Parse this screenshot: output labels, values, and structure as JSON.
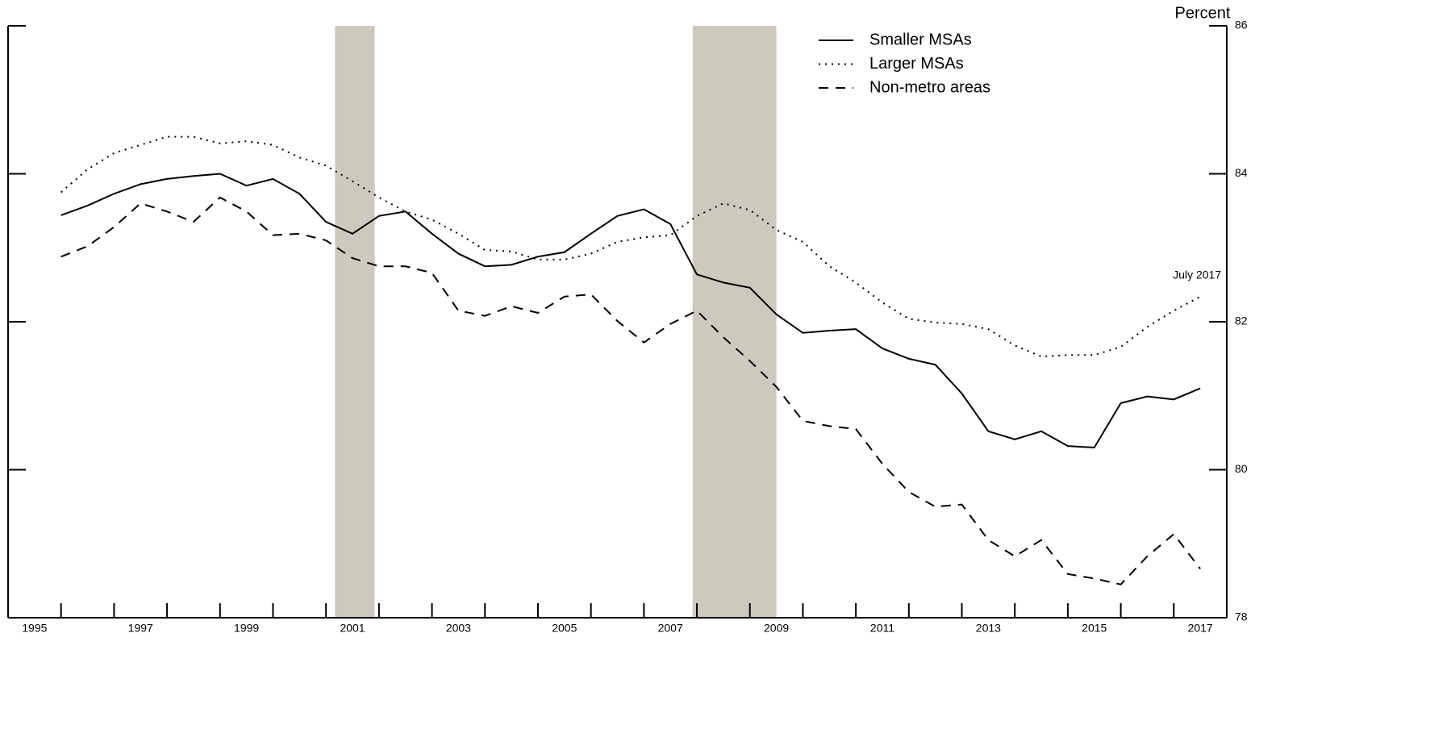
{
  "chart_data": {
    "type": "line",
    "y_axis_label": "Percent",
    "annotation": "July 2017",
    "legend": "top-right",
    "recession_color": "#cdc9bf",
    "recessions": [
      [
        2001.17,
        2001.92
      ],
      [
        2007.92,
        2009.5
      ]
    ],
    "xlim": [
      1995,
      2018
    ],
    "xtick_marks": [
      1996,
      1997,
      1998,
      1999,
      2000,
      2001,
      2002,
      2003,
      2004,
      2005,
      2006,
      2007,
      2008,
      2009,
      2010,
      2011,
      2012,
      2013,
      2014,
      2015,
      2016,
      2017,
      2018
    ],
    "xticks": [
      {
        "value": 1995.5,
        "label": "1995"
      },
      {
        "value": 1997.5,
        "label": "1997"
      },
      {
        "value": 1999.5,
        "label": "1999"
      },
      {
        "value": 2001.5,
        "label": "2001"
      },
      {
        "value": 2003.5,
        "label": "2003"
      },
      {
        "value": 2005.5,
        "label": "2005"
      },
      {
        "value": 2007.5,
        "label": "2007"
      },
      {
        "value": 2009.5,
        "label": "2009"
      },
      {
        "value": 2011.5,
        "label": "2011"
      },
      {
        "value": 2013.5,
        "label": "2013"
      },
      {
        "value": 2015.5,
        "label": "2015"
      },
      {
        "value": 2017.5,
        "label": "2017"
      }
    ],
    "ylim": [
      78,
      86
    ],
    "yticks": [
      78,
      80,
      82,
      84,
      86
    ],
    "x": [
      1996.0,
      1996.5,
      1997.0,
      1997.5,
      1998.0,
      1998.5,
      1999.0,
      1999.5,
      2000.0,
      2000.5,
      2001.0,
      2001.5,
      2002.0,
      2002.5,
      2003.0,
      2003.5,
      2004.0,
      2004.5,
      2005.0,
      2005.5,
      2006.0,
      2006.5,
      2007.0,
      2007.5,
      2008.0,
      2008.5,
      2009.0,
      2009.5,
      2010.0,
      2010.5,
      2011.0,
      2011.5,
      2012.0,
      2012.5,
      2013.0,
      2013.5,
      2014.0,
      2014.5,
      2015.0,
      2015.5,
      2016.0,
      2016.5,
      2017.0,
      2017.5
    ],
    "series": [
      {
        "name": "Smaller MSAs",
        "color": "#000000",
        "style": "solid",
        "values": [
          83.44,
          83.57,
          83.73,
          83.86,
          83.93,
          83.97,
          84.0,
          83.84,
          83.93,
          83.73,
          83.35,
          83.19,
          83.43,
          83.49,
          83.19,
          82.92,
          82.75,
          82.77,
          82.88,
          82.94,
          83.19,
          83.43,
          83.52,
          83.32,
          82.64,
          82.53,
          82.46,
          82.1,
          81.85,
          81.88,
          81.9,
          81.64,
          81.5,
          81.42,
          81.03,
          80.52,
          80.41,
          80.52,
          80.32,
          80.3,
          80.9,
          80.99,
          80.95,
          81.1
        ]
      },
      {
        "name": "Larger MSAs",
        "color": "#000000",
        "style": "dotted",
        "values": [
          83.75,
          84.06,
          84.28,
          84.39,
          84.5,
          84.5,
          84.41,
          84.44,
          84.39,
          84.22,
          84.11,
          83.9,
          83.68,
          83.49,
          83.38,
          83.19,
          82.97,
          82.95,
          82.84,
          82.84,
          82.92,
          83.08,
          83.14,
          83.17,
          83.43,
          83.6,
          83.51,
          83.24,
          83.08,
          82.75,
          82.53,
          82.26,
          82.04,
          81.99,
          81.97,
          81.9,
          81.68,
          81.53,
          81.55,
          81.55,
          81.66,
          81.93,
          82.15,
          82.34
        ]
      },
      {
        "name": "Non-metro areas",
        "color": "#000000",
        "style": "dashed",
        "values": [
          82.88,
          83.02,
          83.28,
          83.6,
          83.49,
          83.35,
          83.68,
          83.49,
          83.17,
          83.19,
          83.1,
          82.86,
          82.75,
          82.75,
          82.66,
          82.15,
          82.08,
          82.21,
          82.12,
          82.34,
          82.37,
          82.01,
          81.72,
          81.97,
          82.15,
          81.79,
          81.47,
          81.12,
          80.66,
          80.59,
          80.55,
          80.08,
          79.7,
          79.5,
          79.53,
          79.05,
          78.83,
          79.05,
          78.59,
          78.53,
          78.45,
          78.83,
          79.13,
          78.66
        ]
      }
    ]
  }
}
